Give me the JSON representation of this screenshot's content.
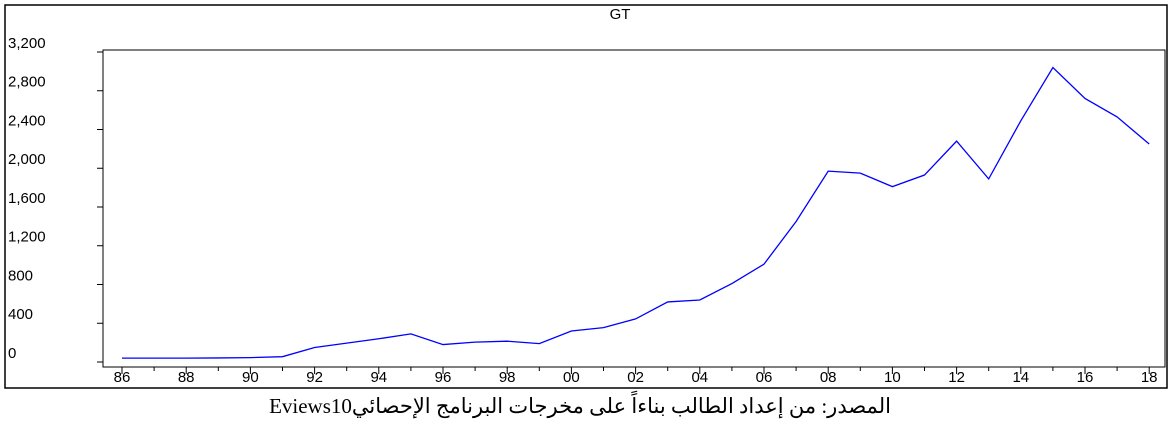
{
  "chart_data": {
    "type": "line",
    "title": "GT",
    "categories": [
      "86",
      null,
      "88",
      null,
      "90",
      null,
      "92",
      null,
      "94",
      null,
      "96",
      null,
      "98",
      null,
      "00",
      null,
      "02",
      null,
      "04",
      null,
      "06",
      null,
      "08",
      null,
      "10",
      null,
      "12",
      null,
      "14",
      null,
      "16",
      null,
      "18"
    ],
    "values": [
      40,
      40,
      40,
      42,
      45,
      55,
      150,
      195,
      240,
      290,
      180,
      205,
      215,
      190,
      320,
      355,
      445,
      620,
      640,
      810,
      1010,
      1450,
      1970,
      1950,
      1810,
      1930,
      2280,
      1890,
      2490,
      3040,
      2720,
      2530,
      2250
    ],
    "color": "#0000ff",
    "ylim": [
      0,
      3200
    ],
    "yticks": [
      0,
      400,
      800,
      {
        "value": 1200,
        "label": "1,200"
      },
      {
        "value": 1600,
        "label": "1,600"
      },
      {
        "value": 2000,
        "label": "2,000"
      },
      {
        "value": 2400,
        "label": "2,400"
      },
      {
        "value": 2800,
        "label": "2,800"
      },
      {
        "value": 3200,
        "label": "3,200"
      }
    ],
    "grid": false,
    "source": "المصدر: من إعداد الطالب بناءاً على مخرجات البرنامج الإحصائيEviews10"
  }
}
